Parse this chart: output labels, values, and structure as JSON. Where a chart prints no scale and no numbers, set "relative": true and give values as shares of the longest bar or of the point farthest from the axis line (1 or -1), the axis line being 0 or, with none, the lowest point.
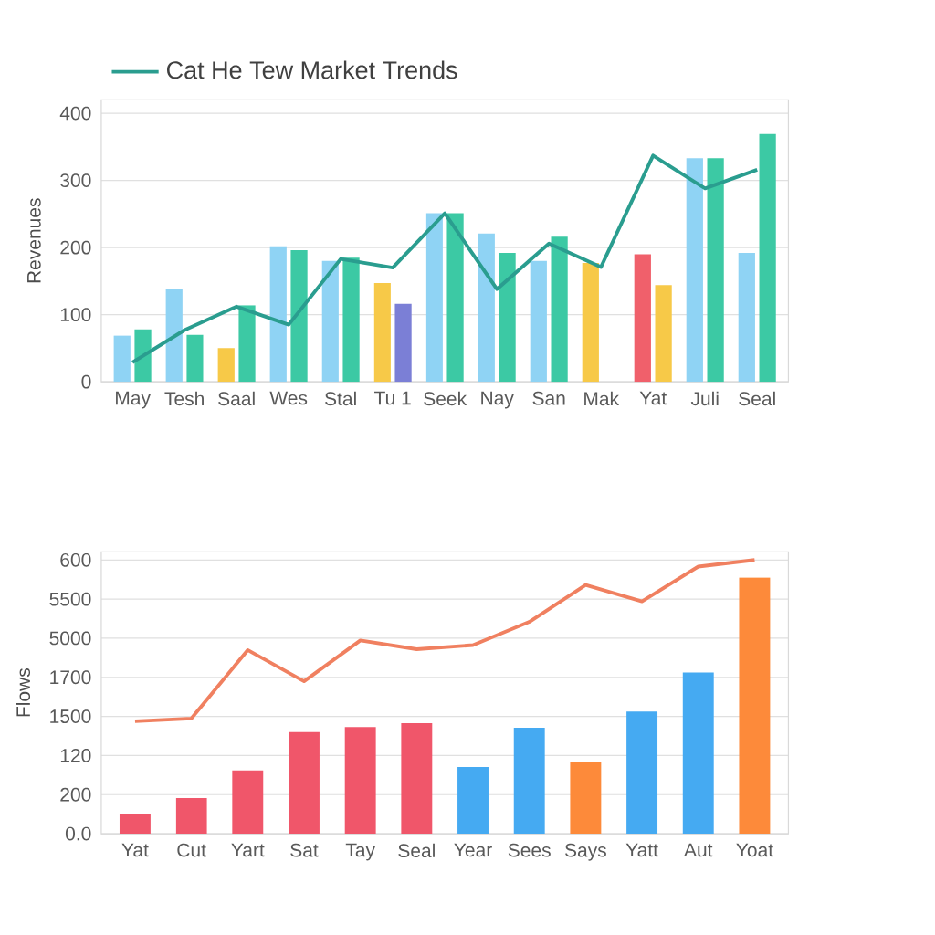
{
  "chart_data": [
    {
      "type": "bar",
      "ylabel": "Revenues",
      "categories": [
        "May",
        "Tesh",
        "Saal",
        "Wes",
        "Stal",
        "Tu 1",
        "Seek",
        "Nay",
        "San",
        "Mak",
        "Yat",
        "Juli",
        "Seal"
      ],
      "ylim": [
        0,
        420
      ],
      "yticks": [
        0,
        100,
        200,
        300,
        400
      ],
      "grid": "y",
      "legend": "top left",
      "series": [
        {
          "colors": [
            "#8fd3f4",
            "#8fd3f4",
            "#f7c948",
            "#8fd3f4",
            "#8fd3f4",
            "#f7c948",
            "#8fd3f4",
            "#8fd3f4",
            "#8fd3f4",
            "#f7c948",
            "#f0606b",
            "#8fd3f4",
            "#8fd3f4"
          ],
          "values": [
            69,
            138,
            50,
            202,
            180,
            147,
            251,
            221,
            180,
            177,
            190,
            333,
            192
          ]
        },
        {
          "colors": [
            "#3cc9a4",
            "#3cc9a4",
            "#3cc9a4",
            "#3cc9a4",
            "#3cc9a4",
            "#7b7fd6",
            "#3cc9a4",
            "#3cc9a4",
            "#3cc9a4",
            "#3cc9a4",
            "#f7c948",
            "#3cc9a4",
            "#3cc9a4"
          ],
          "values": [
            78,
            70,
            114,
            196,
            185,
            116,
            251,
            192,
            216,
            null,
            144,
            333,
            369
          ]
        },
        {
          "name": "Cat He Tew Market Trends",
          "type": "line",
          "color": "#2a9d8f",
          "values": [
            29,
            77,
            112,
            85,
            183,
            170,
            251,
            138,
            206,
            171,
            337,
            288,
            316
          ]
        }
      ]
    },
    {
      "type": "bar",
      "ylabel": "Flows",
      "categories": [
        "Yat",
        "Cut",
        "Yart",
        "Sat",
        "Tay",
        "Seal",
        "Year",
        "Sees",
        "Says",
        "Yatt",
        "Aut",
        "Yoat"
      ],
      "relative": true,
      "annotations": [
        "0.0",
        "200",
        "120",
        "1500",
        "1700",
        "5000",
        "5500",
        "600"
      ],
      "grid": "y",
      "series": [
        {
          "colors": [
            "#f0566a",
            "#f0566a",
            "#f0566a",
            "#f0566a",
            "#f0566a",
            "#f0566a",
            "#45aaf2",
            "#45aaf2",
            "#fd8a3a",
            "#45aaf2",
            "#45aaf2",
            "#fd8a3a"
          ],
          "values": [
            0.073,
            0.13,
            0.231,
            0.371,
            0.39,
            0.404,
            0.244,
            0.387,
            0.26,
            0.446,
            0.589,
            0.936
          ]
        },
        {
          "type": "line",
          "color": "#f08060",
          "values": [
            0.411,
            0.421,
            0.671,
            0.557,
            0.706,
            0.674,
            0.689,
            0.774,
            0.909,
            0.849,
            0.976,
            1
          ]
        }
      ]
    }
  ]
}
